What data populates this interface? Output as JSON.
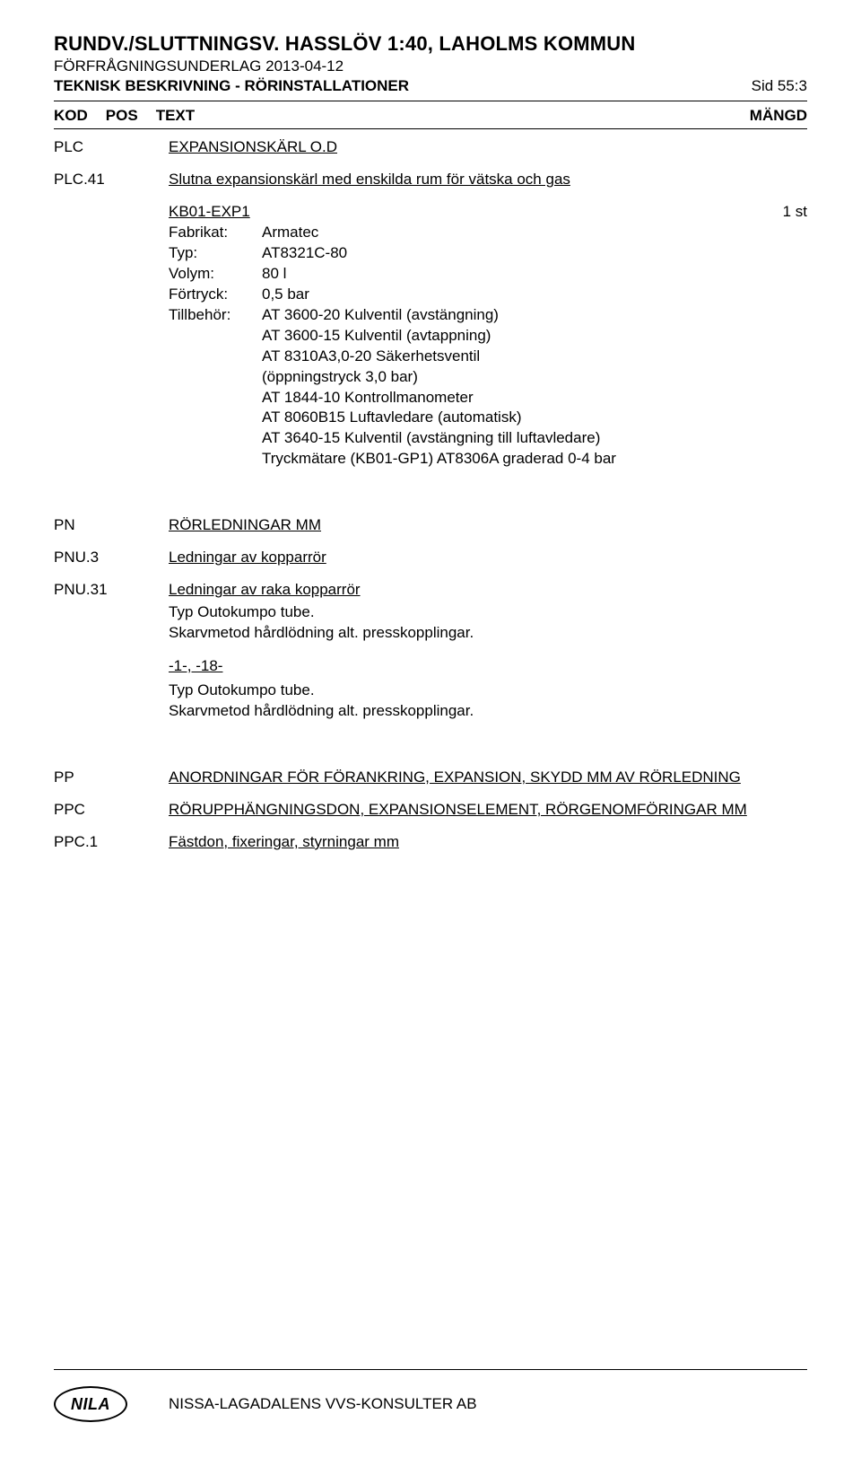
{
  "header": {
    "title": "RUNDV./SLUTTNINGSV. HASSLÖV 1:40, LAHOLMS KOMMUN",
    "sub1": "FÖRFRÅGNINGSUNDERLAG 2013-04-12",
    "sub2": "TEKNISK BESKRIVNING - RÖRINSTALLATIONER",
    "page": "Sid 55:3"
  },
  "kodpos": {
    "kod": "KOD",
    "pos": "POS",
    "text": "TEXT",
    "mangd": "MÄNGD"
  },
  "plc": {
    "code": "PLC",
    "title": "EXPANSIONSKÄRL O.D"
  },
  "plc41": {
    "code": "PLC.41",
    "title": "Slutna expansionskärl med enskilda rum för vätska och gas",
    "item_code": "KB01-EXP1",
    "qty": "1 st",
    "fields": {
      "fabrikat_label": "Fabrikat:",
      "fabrikat_value": "Armatec",
      "typ_label": "Typ:",
      "typ_value": "AT8321C-80",
      "volym_label": "Volym:",
      "volym_value": "80 l",
      "fortryck_label": "Förtryck:",
      "fortryck_value": "0,5 bar",
      "tillbehor_label": "Tillbehör:",
      "tillbehor_lines": [
        "AT 3600-20 Kulventil (avstängning)",
        "AT 3600-15 Kulventil (avtappning)",
        "AT 8310A3,0-20 Säkerhetsventil",
        "(öppningstryck 3,0 bar)",
        "AT 1844-10 Kontrollmanometer",
        "AT 8060B15 Luftavledare (automatisk)",
        "AT 3640-15 Kulventil (avstängning till luftavledare)",
        "Tryckmätare (KB01-GP1) AT8306A graderad 0-4 bar"
      ]
    }
  },
  "pn": {
    "code": "PN",
    "title": "RÖRLEDNINGAR MM"
  },
  "pnu3": {
    "code": "PNU.3",
    "title": "Ledningar av kopparrör"
  },
  "pnu31": {
    "code": "PNU.31",
    "title": "Ledningar av raka kopparrör",
    "line1": "Typ Outokumpo tube.",
    "line2": "Skarvmetod hårdlödning alt. presskopplingar.",
    "subhead": "-1-, -18-",
    "line3": "Typ Outokumpo tube.",
    "line4": "Skarvmetod hårdlödning alt. presskopplingar."
  },
  "pp": {
    "code": "PP",
    "title": "ANORDNINGAR FÖR FÖRANKRING, EXPANSION, SKYDD MM AV RÖRLEDNING"
  },
  "ppc": {
    "code": "PPC",
    "title": "RÖRUPPHÄNGNINGSDON, EXPANSIONSELEMENT, RÖRGENOMFÖRINGAR MM"
  },
  "ppc1": {
    "code": "PPC.1",
    "title": "Fästdon, fixeringar, styrningar mm"
  },
  "footer": {
    "logo": "NILA",
    "company": "NISSA-LAGADALENS VVS-KONSULTER AB"
  }
}
